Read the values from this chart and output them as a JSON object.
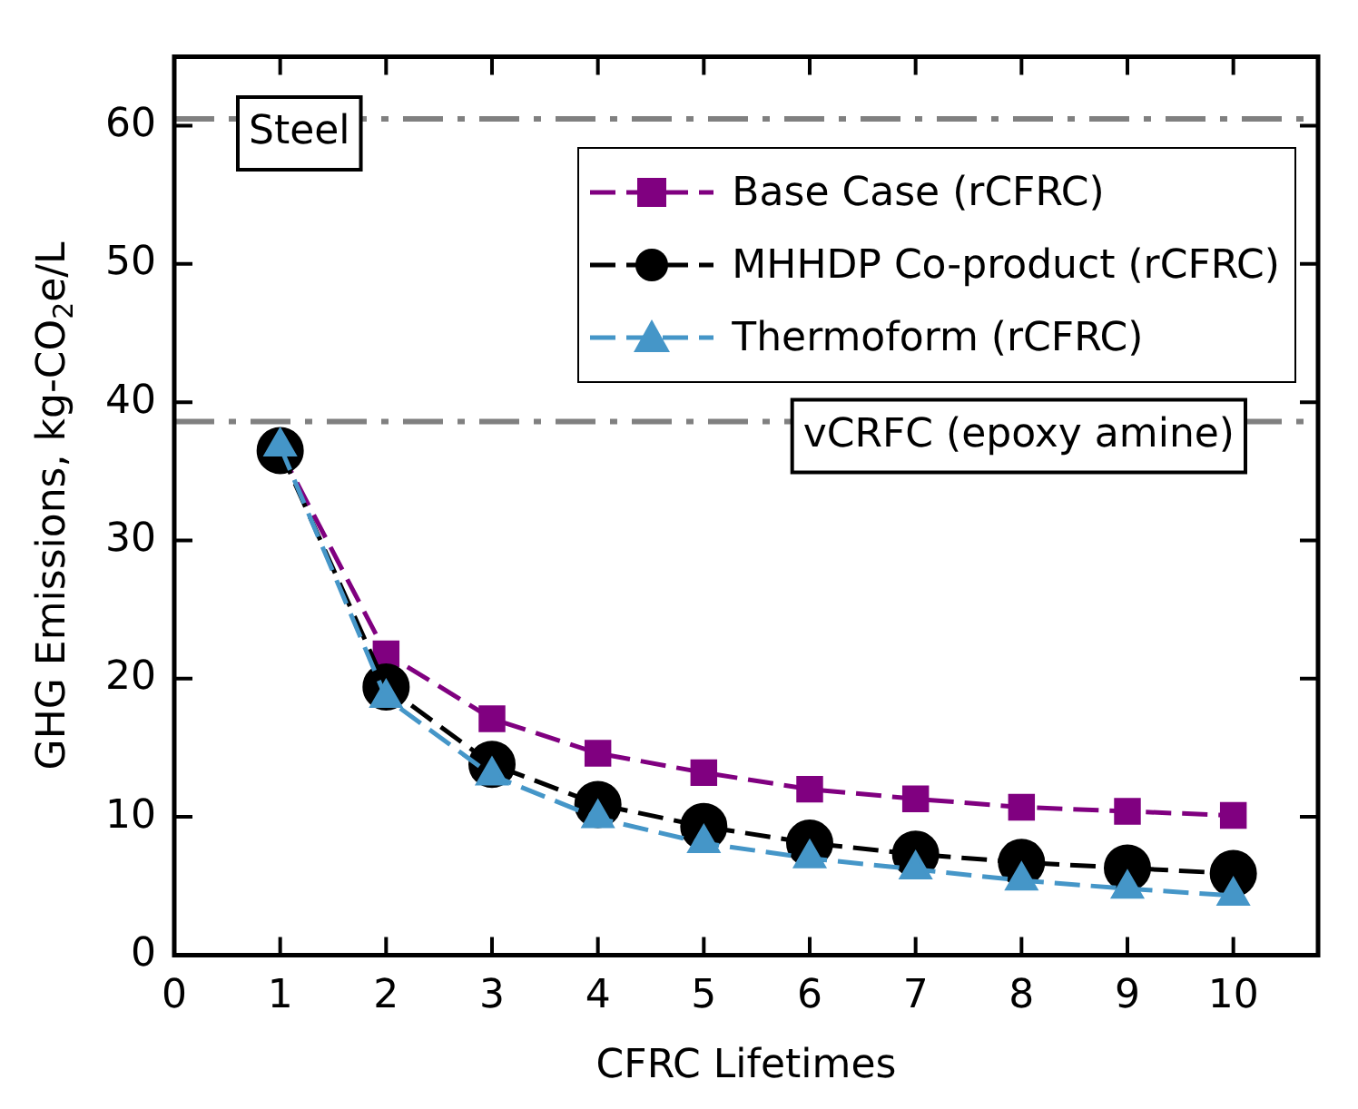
{
  "chart_data": {
    "type": "line",
    "xlabel": "CFRC Lifetimes",
    "ylabel": "GHG Emissions, kg-CO$_{2}$e/L",
    "x": [
      1,
      2,
      3,
      4,
      5,
      6,
      7,
      8,
      9,
      10
    ],
    "series": [
      {
        "name": "Base Case (rCFRC)",
        "color": "#800080",
        "marker": "square",
        "line_style": "dashed",
        "values": [
          36.5,
          21.8,
          17.1,
          14.6,
          13.2,
          12.0,
          11.3,
          10.7,
          10.4,
          10.1
        ]
      },
      {
        "name": "MHHDP Co-product (rCFRC)",
        "color": "#000000",
        "marker": "circle",
        "line_style": "dashed",
        "values": [
          36.5,
          19.4,
          13.8,
          10.9,
          9.3,
          8.1,
          7.3,
          6.7,
          6.3,
          5.9
        ]
      },
      {
        "name": "Thermoform (rCFRC)",
        "color": "#4596c8",
        "marker": "triangle",
        "line_style": "dashed",
        "values": [
          36.8,
          18.6,
          13.0,
          9.9,
          8.1,
          7.0,
          6.2,
          5.4,
          4.8,
          4.3
        ]
      }
    ],
    "xlim": [
      0,
      10.8
    ],
    "xticks": [
      0,
      1,
      2,
      3,
      4,
      5,
      6,
      7,
      8,
      9,
      10
    ],
    "ylim": [
      0,
      65
    ],
    "yticks": [
      0,
      10,
      20,
      30,
      40,
      50,
      60
    ],
    "ref_lines": [
      {
        "axis": "y",
        "value": 60.5,
        "label": "Steel",
        "color": "#808080",
        "line_style": "dashed"
      },
      {
        "axis": "y",
        "value": 38.6,
        "label": "vCRFC (epoxy amine)",
        "color": "#808080",
        "line_style": "dashed"
      }
    ],
    "grid": false,
    "legend": "top right"
  }
}
